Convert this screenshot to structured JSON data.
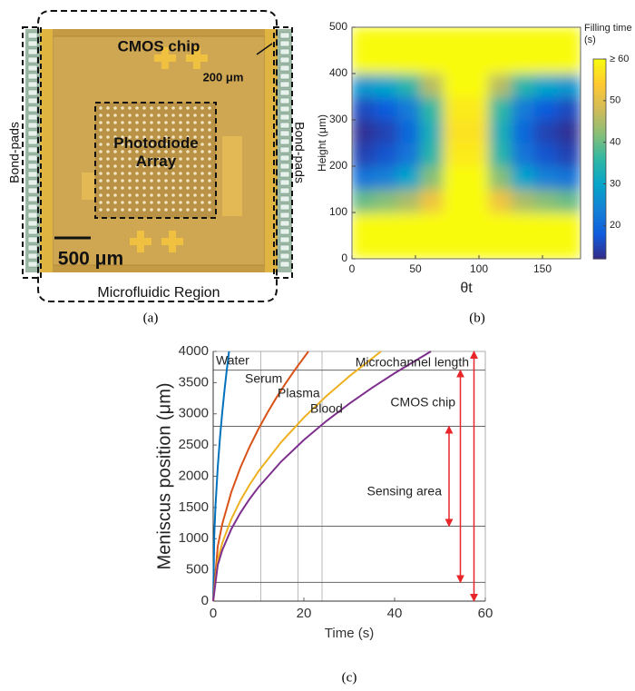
{
  "photo": {
    "labels": {
      "cmos_chip": "CMOS chip",
      "pad_pitch": "200 μm",
      "photodiode_array": "Photodiode Array",
      "scale_bar": "500 μm",
      "bond_pads_left": "Bond-pads",
      "bond_pads_right": "Bond-pads",
      "microfluidic_region": "Microfluidic Region"
    }
  },
  "captions": [
    "(a)",
    "(b)",
    "(c)"
  ],
  "chart_data": [
    {
      "type": "heatmap",
      "x_label": "θt",
      "y_label": "Height (μm)",
      "colorbar_label": "Filling time (s)",
      "x": [
        9,
        27,
        45,
        63,
        81,
        99,
        117,
        135,
        153,
        171
      ],
      "y": [
        25,
        75,
        125,
        175,
        225,
        275,
        325,
        375,
        425,
        475
      ],
      "z": [
        [
          60,
          60,
          60,
          60,
          60,
          60,
          60,
          60,
          60,
          60
        ],
        [
          60,
          60,
          60,
          60,
          60,
          60,
          60,
          60,
          60,
          60
        ],
        [
          40,
          42,
          45,
          52,
          60,
          60,
          52,
          45,
          42,
          40
        ],
        [
          22,
          24,
          30,
          42,
          60,
          60,
          42,
          30,
          24,
          22
        ],
        [
          15,
          17,
          22,
          35,
          58,
          58,
          35,
          22,
          17,
          15
        ],
        [
          13,
          15,
          20,
          33,
          57,
          57,
          33,
          20,
          15,
          13
        ],
        [
          16,
          18,
          23,
          36,
          58,
          58,
          36,
          23,
          18,
          16
        ],
        [
          28,
          30,
          35,
          46,
          60,
          60,
          46,
          35,
          30,
          28
        ],
        [
          60,
          60,
          60,
          60,
          60,
          60,
          60,
          60,
          60,
          60
        ],
        [
          60,
          60,
          60,
          60,
          60,
          60,
          60,
          60,
          60,
          60
        ]
      ],
      "xlim": [
        0,
        180
      ],
      "xticks": [
        0,
        50,
        100,
        150
      ],
      "ylim": [
        0,
        500
      ],
      "yticks": [
        0,
        100,
        200,
        300,
        400,
        500
      ],
      "clim": [
        12,
        60
      ],
      "cticks": [
        20,
        30,
        40,
        50,
        {
          "value": 60,
          "label": "≥ 60"
        }
      ],
      "colormap": [
        "#352a87",
        "#0f5cdd",
        "#1481d6",
        "#06a4ca",
        "#2eb7a4",
        "#87bf77",
        "#d1bb59",
        "#fec832",
        "#f9fb0e"
      ]
    },
    {
      "type": "line",
      "x_label": "Time (s)",
      "y_label": "Meniscus position (μm)",
      "xlim": [
        0,
        60
      ],
      "xticks": [
        0,
        20,
        40,
        60
      ],
      "ylim": [
        0,
        4000
      ],
      "yticks": [
        0,
        500,
        1000,
        1500,
        2000,
        2500,
        3000,
        3500,
        4000
      ],
      "hlines": [
        300,
        1200,
        2800,
        3700
      ],
      "vlines": [
        10.5,
        18.7,
        24
      ],
      "series": [
        {
          "name": "Water",
          "color": "#0072bd",
          "x": [
            0,
            0.25,
            0.5,
            1,
            1.5,
            2,
            2.5,
            3,
            3.5
          ],
          "values": [
            0,
            1069,
            1512,
            2138,
            2619,
            3024,
            3381,
            3703,
            4000
          ]
        },
        {
          "name": "Serum",
          "color": "#d95319",
          "x": [
            0,
            1,
            2,
            4,
            6,
            8,
            10,
            12,
            14,
            16,
            18,
            21
          ],
          "values": [
            0,
            873,
            1234,
            1746,
            2138,
            2469,
            2760,
            3024,
            3266,
            3491,
            3703,
            4000
          ]
        },
        {
          "name": "Plasma",
          "color": "#edb120",
          "x": [
            0,
            1,
            2,
            4,
            6,
            8,
            10,
            15,
            20,
            25,
            30,
            37
          ],
          "values": [
            0,
            658,
            930,
            1315,
            1611,
            1860,
            2080,
            2547,
            2941,
            3288,
            3601,
            4000
          ]
        },
        {
          "name": "Blood",
          "color": "#7e2f8e",
          "x": [
            0,
            1,
            2,
            4,
            6,
            8,
            10,
            15,
            20,
            25,
            30,
            35,
            40,
            48
          ],
          "values": [
            0,
            577,
            816,
            1155,
            1414,
            1633,
            1826,
            2236,
            2582,
            2887,
            3162,
            3416,
            3651,
            4000
          ]
        }
      ],
      "ranges": [
        {
          "label": "Sensing area",
          "from": 1200,
          "to": 2800,
          "x": 52,
          "color": "#e8262a"
        },
        {
          "label": "CMOS chip",
          "from": 300,
          "to": 3700,
          "x": 54.5,
          "color": "#e8262a"
        },
        {
          "label": "Microchannel length",
          "from": 0,
          "to": 4000,
          "x": 57.5,
          "color": "#e8262a"
        }
      ]
    }
  ]
}
